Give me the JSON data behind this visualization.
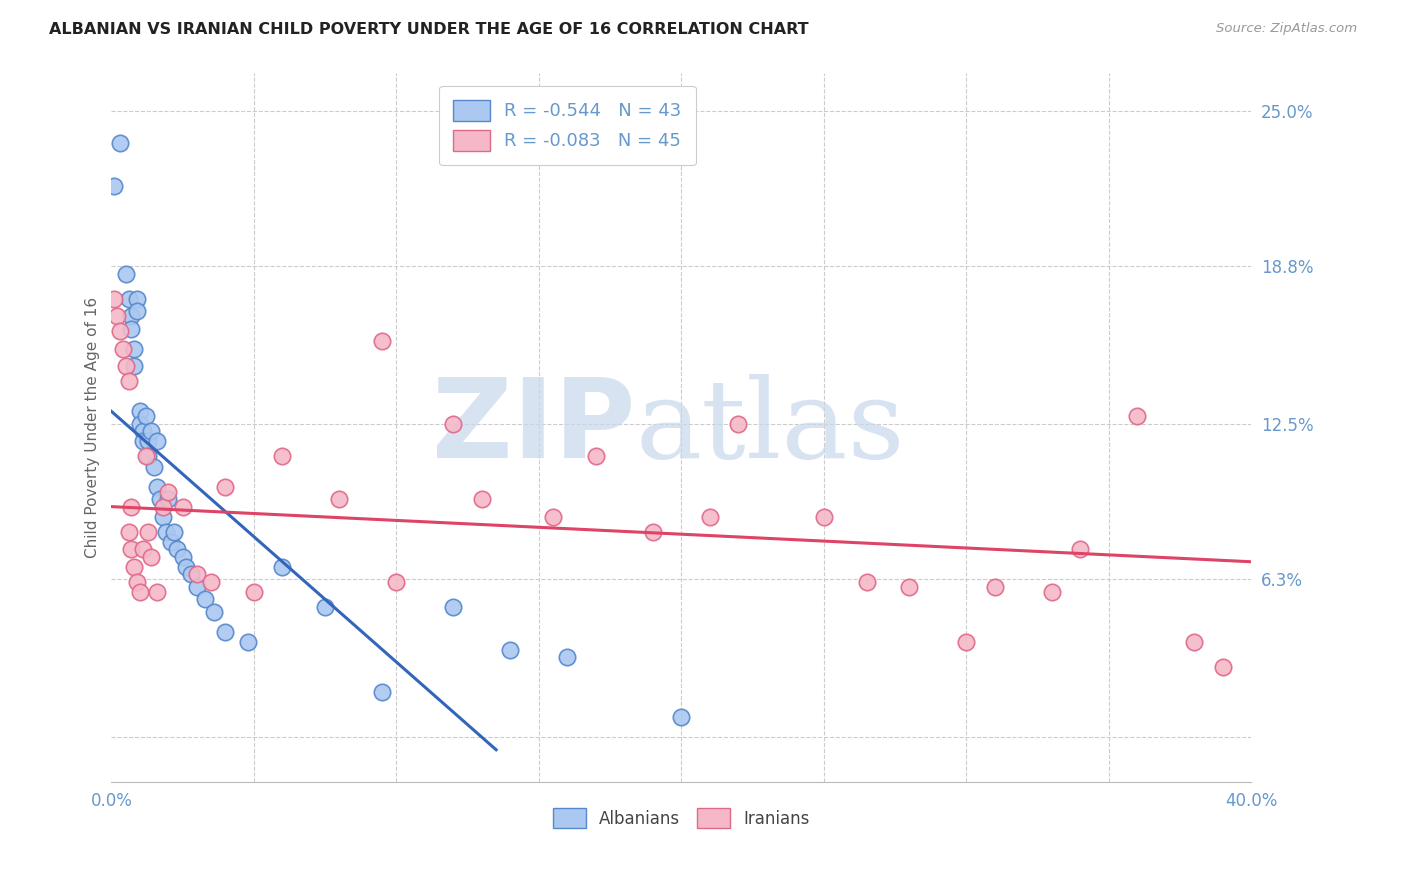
{
  "title": "ALBANIAN VS IRANIAN CHILD POVERTY UNDER THE AGE OF 16 CORRELATION CHART",
  "source": "Source: ZipAtlas.com",
  "ylabel": "Child Poverty Under the Age of 16",
  "yticks": [
    0.0,
    0.063,
    0.125,
    0.188,
    0.25
  ],
  "ytick_labels": [
    "",
    "6.3%",
    "12.5%",
    "18.8%",
    "25.0%"
  ],
  "xmin": 0.0,
  "xmax": 0.4,
  "ymin": -0.018,
  "ymax": 0.265,
  "albanian_fill": "#aac8f0",
  "albanian_edge": "#5588cc",
  "iranian_fill": "#f5b8c8",
  "iranian_edge": "#e06888",
  "albanian_line_color": "#3366bb",
  "iranian_line_color": "#dd4466",
  "R_albanian": "-0.544",
  "N_albanian": "43",
  "R_iranian": "-0.083",
  "N_iranian": "45",
  "watermark_zip": "ZIP",
  "watermark_atlas": "atlas",
  "text_blue": "#6699cc",
  "text_dark": "#444444",
  "text_gray": "#999999",
  "alb_line_x0": 0.0,
  "alb_line_y0": 0.13,
  "alb_line_x1": 0.135,
  "alb_line_y1": -0.005,
  "iran_line_x0": 0.0,
  "iran_line_y0": 0.092,
  "iran_line_x1": 0.4,
  "iran_line_y1": 0.07,
  "albanian_x": [
    0.001,
    0.003,
    0.005,
    0.006,
    0.007,
    0.007,
    0.008,
    0.008,
    0.009,
    0.009,
    0.01,
    0.01,
    0.011,
    0.011,
    0.012,
    0.013,
    0.013,
    0.014,
    0.015,
    0.016,
    0.016,
    0.017,
    0.018,
    0.019,
    0.02,
    0.021,
    0.022,
    0.023,
    0.025,
    0.026,
    0.028,
    0.03,
    0.033,
    0.036,
    0.04,
    0.048,
    0.06,
    0.075,
    0.095,
    0.12,
    0.14,
    0.16,
    0.2
  ],
  "albanian_y": [
    0.22,
    0.237,
    0.185,
    0.175,
    0.168,
    0.163,
    0.155,
    0.148,
    0.175,
    0.17,
    0.13,
    0.125,
    0.122,
    0.118,
    0.128,
    0.118,
    0.112,
    0.122,
    0.108,
    0.1,
    0.118,
    0.095,
    0.088,
    0.082,
    0.095,
    0.078,
    0.082,
    0.075,
    0.072,
    0.068,
    0.065,
    0.06,
    0.055,
    0.05,
    0.042,
    0.038,
    0.068,
    0.052,
    0.018,
    0.052,
    0.035,
    0.032,
    0.008
  ],
  "iranian_x": [
    0.001,
    0.002,
    0.003,
    0.004,
    0.005,
    0.006,
    0.006,
    0.007,
    0.007,
    0.008,
    0.009,
    0.01,
    0.011,
    0.012,
    0.013,
    0.014,
    0.016,
    0.018,
    0.02,
    0.025,
    0.03,
    0.035,
    0.04,
    0.05,
    0.06,
    0.08,
    0.1,
    0.12,
    0.155,
    0.17,
    0.19,
    0.21,
    0.25,
    0.28,
    0.31,
    0.34,
    0.36,
    0.38,
    0.39,
    0.095,
    0.13,
    0.22,
    0.265,
    0.3,
    0.33
  ],
  "iranian_y": [
    0.175,
    0.168,
    0.162,
    0.155,
    0.148,
    0.142,
    0.082,
    0.075,
    0.092,
    0.068,
    0.062,
    0.058,
    0.075,
    0.112,
    0.082,
    0.072,
    0.058,
    0.092,
    0.098,
    0.092,
    0.065,
    0.062,
    0.1,
    0.058,
    0.112,
    0.095,
    0.062,
    0.125,
    0.088,
    0.112,
    0.082,
    0.088,
    0.088,
    0.06,
    0.06,
    0.075,
    0.128,
    0.038,
    0.028,
    0.158,
    0.095,
    0.125,
    0.062,
    0.038,
    0.058
  ]
}
